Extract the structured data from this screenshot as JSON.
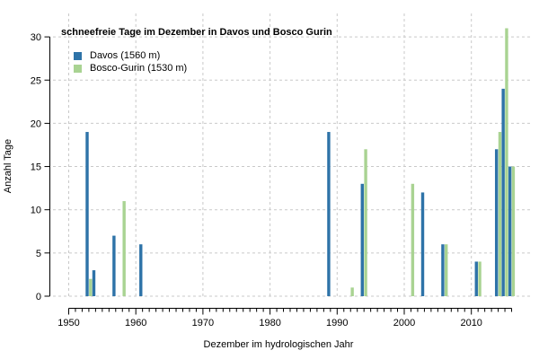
{
  "chart_data": {
    "type": "bar",
    "title": "schneefreie Tage im Dezember in Davos und Bosco Gurin",
    "xlabel": "Dezember im hydrologischen Jahr",
    "ylabel": "Anzahl Tage",
    "xlim": [
      1950,
      2016
    ],
    "ylim": [
      0,
      30
    ],
    "xticks": [
      1950,
      1960,
      1970,
      1980,
      1990,
      2000,
      2010
    ],
    "yticks": [
      0,
      5,
      10,
      15,
      20,
      25,
      30
    ],
    "grid": "dashed-gray-at-major-ticks",
    "gridline_color": "#c9c9c9",
    "legend_position": "top-left",
    "series": [
      {
        "name": "Davos (1560 m)",
        "color": "#2e73a8",
        "data": [
          {
            "year": 1953,
            "value": 19
          },
          {
            "year": 1954,
            "value": 3
          },
          {
            "year": 1957,
            "value": 7
          },
          {
            "year": 1961,
            "value": 6
          },
          {
            "year": 1989,
            "value": 19
          },
          {
            "year": 1994,
            "value": 13
          },
          {
            "year": 2003,
            "value": 12
          },
          {
            "year": 2006,
            "value": 6
          },
          {
            "year": 2011,
            "value": 4
          },
          {
            "year": 2014,
            "value": 17
          },
          {
            "year": 2015,
            "value": 24
          },
          {
            "year": 2016,
            "value": 15
          }
        ]
      },
      {
        "name": "Bosco-Gurin (1530 m)",
        "color": "#a9d392",
        "data": [
          {
            "year": 1953,
            "value": 2
          },
          {
            "year": 1958,
            "value": 11
          },
          {
            "year": 1992,
            "value": 1
          },
          {
            "year": 1994,
            "value": 17
          },
          {
            "year": 2001,
            "value": 13
          },
          {
            "year": 2006,
            "value": 6
          },
          {
            "year": 2011,
            "value": 4
          },
          {
            "year": 2014,
            "value": 19
          },
          {
            "year": 2015,
            "value": 31
          },
          {
            "year": 2016,
            "value": 15
          }
        ]
      }
    ]
  }
}
